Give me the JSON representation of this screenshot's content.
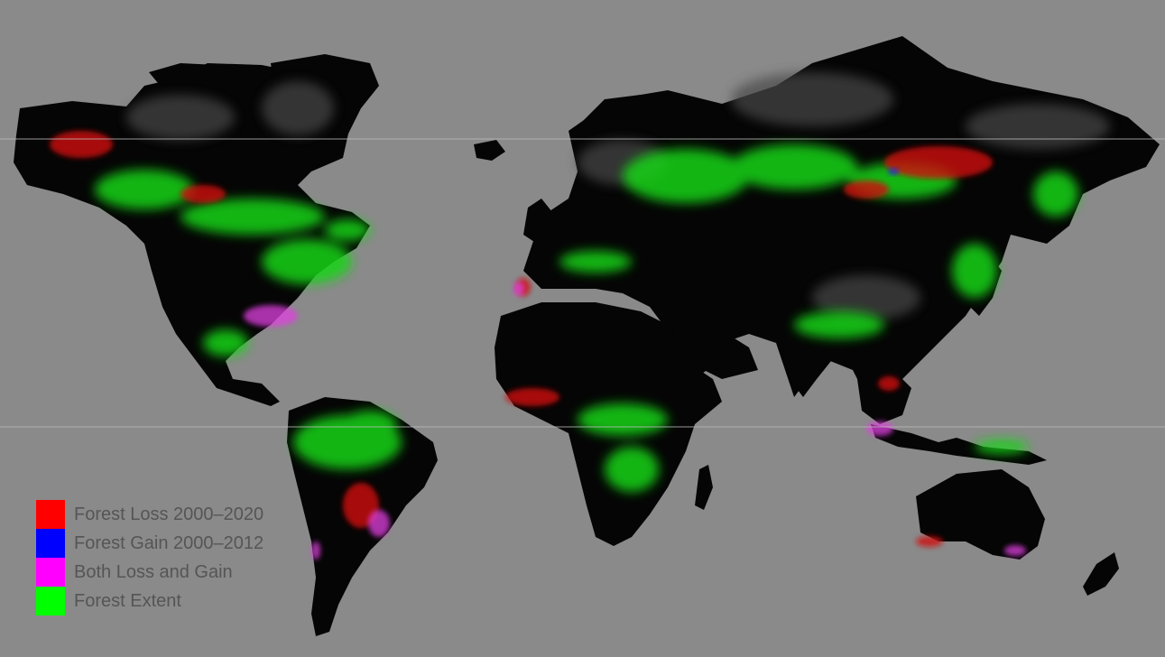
{
  "map": {
    "type": "world forest change map",
    "background_color": "#8a8a8a",
    "land_color": "#000000",
    "palette": {
      "loss": "#ff0000",
      "gain": "#0000ff",
      "both": "#ff00ff",
      "extent": "#00ff00"
    }
  },
  "legend": {
    "items": [
      {
        "label": "Forest Loss 2000–2020",
        "color": "#ff0000"
      },
      {
        "label": "Forest Gain 2000–2012",
        "color": "#0000ff"
      },
      {
        "label": "Both Loss and Gain",
        "color": "#ff00ff"
      },
      {
        "label": "Forest Extent",
        "color": "#00ff00"
      }
    ]
  }
}
